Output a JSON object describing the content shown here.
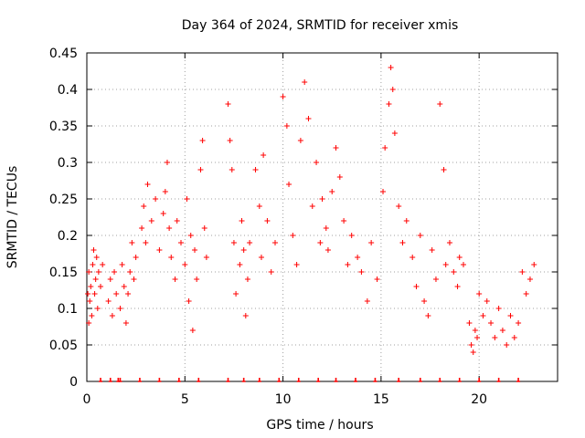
{
  "chart_data": {
    "type": "scatter",
    "title": "Day 364 of 2024, SRMTID for receiver xmis",
    "xlabel": "GPS time / hours",
    "ylabel": "SRMTID / TECUs",
    "xlim": [
      0,
      24
    ],
    "ylim": [
      0,
      0.45
    ],
    "xticks": [
      0,
      5,
      10,
      15,
      20
    ],
    "xtick_labels": [
      "0",
      "5",
      "10",
      "15",
      "20"
    ],
    "yticks": [
      0,
      0.05,
      0.1,
      0.15,
      0.2,
      0.25,
      0.3,
      0.35,
      0.4,
      0.45
    ],
    "ytick_labels": [
      "0",
      "0.05",
      "0.1",
      "0.15",
      "0.2",
      "0.25",
      "0.3",
      "0.35",
      "0.4",
      "0.45"
    ],
    "grid": true,
    "marker": "plus",
    "color": "#ff0000",
    "series": [
      {
        "name": "SRMTID",
        "x": [
          0.05,
          0.1,
          0.1,
          0.15,
          0.2,
          0.25,
          0.3,
          0.35,
          0.4,
          0.45,
          0.5,
          0.55,
          0.6,
          0.7,
          0.8,
          1.1,
          1.2,
          1.3,
          1.4,
          1.5,
          1.7,
          1.8,
          1.9,
          2.0,
          2.1,
          2.2,
          2.3,
          2.4,
          2.5,
          2.8,
          2.9,
          3.0,
          3.1,
          3.3,
          3.5,
          3.7,
          3.9,
          4.0,
          4.1,
          4.2,
          4.3,
          4.5,
          4.6,
          4.8,
          5.0,
          5.1,
          5.2,
          5.3,
          5.4,
          5.5,
          5.6,
          5.8,
          5.9,
          6.0,
          6.1,
          7.2,
          7.3,
          7.4,
          7.5,
          7.6,
          7.8,
          7.9,
          8.0,
          8.1,
          8.2,
          8.3,
          8.6,
          8.8,
          8.9,
          9.0,
          9.2,
          9.4,
          9.6,
          10.0,
          10.2,
          10.3,
          10.5,
          10.7,
          10.9,
          11.1,
          11.3,
          11.5,
          11.7,
          11.9,
          12.0,
          12.2,
          12.3,
          12.5,
          12.7,
          12.9,
          13.1,
          13.3,
          13.5,
          13.8,
          14.0,
          14.3,
          14.5,
          14.8,
          15.1,
          15.2,
          15.4,
          15.5,
          15.6,
          15.7,
          15.9,
          16.1,
          16.3,
          16.6,
          16.8,
          17.0,
          17.2,
          17.4,
          17.6,
          17.8,
          18.0,
          18.2,
          18.3,
          18.5,
          18.7,
          18.9,
          19.0,
          19.2,
          19.5,
          19.6,
          19.7,
          19.8,
          19.9,
          20.0,
          20.2,
          20.4,
          20.6,
          20.8,
          21.0,
          21.2,
          21.4,
          21.6,
          21.8,
          22.0,
          22.2,
          22.4,
          22.6,
          22.8
        ],
        "y": [
          0.12,
          0.08,
          0.15,
          0.11,
          0.13,
          0.09,
          0.16,
          0.18,
          0.12,
          0.14,
          0.17,
          0.1,
          0.15,
          0.13,
          0.16,
          0.11,
          0.14,
          0.09,
          0.15,
          0.12,
          0.1,
          0.16,
          0.13,
          0.08,
          0.12,
          0.15,
          0.19,
          0.14,
          0.17,
          0.21,
          0.24,
          0.19,
          0.27,
          0.22,
          0.25,
          0.18,
          0.23,
          0.26,
          0.3,
          0.21,
          0.17,
          0.14,
          0.22,
          0.19,
          0.16,
          0.25,
          0.11,
          0.2,
          0.07,
          0.18,
          0.14,
          0.29,
          0.33,
          0.21,
          0.17,
          0.38,
          0.33,
          0.29,
          0.19,
          0.12,
          0.16,
          0.22,
          0.18,
          0.09,
          0.14,
          0.19,
          0.29,
          0.24,
          0.17,
          0.31,
          0.22,
          0.15,
          0.19,
          0.39,
          0.35,
          0.27,
          0.2,
          0.16,
          0.33,
          0.41,
          0.36,
          0.24,
          0.3,
          0.19,
          0.25,
          0.21,
          0.18,
          0.26,
          0.32,
          0.28,
          0.22,
          0.16,
          0.2,
          0.17,
          0.15,
          0.11,
          0.19,
          0.14,
          0.26,
          0.32,
          0.38,
          0.43,
          0.4,
          0.34,
          0.24,
          0.19,
          0.22,
          0.17,
          0.13,
          0.2,
          0.11,
          0.09,
          0.18,
          0.14,
          0.38,
          0.29,
          0.16,
          0.19,
          0.15,
          0.13,
          0.17,
          0.16,
          0.08,
          0.05,
          0.04,
          0.07,
          0.06,
          0.12,
          0.09,
          0.11,
          0.08,
          0.06,
          0.1,
          0.07,
          0.05,
          0.09,
          0.06,
          0.08,
          0.15,
          0.12,
          0.14,
          0.16
        ]
      }
    ],
    "gap_markers": {
      "y": 0,
      "x": [
        0.7,
        1.2,
        1.6,
        1.7,
        2.7,
        3.7,
        4.7,
        5.7,
        7.2,
        8.0,
        8.8,
        9.8,
        10.8,
        11.8,
        12.7,
        13.7,
        14.7,
        15.9,
        17.0,
        18.0,
        19.0,
        20.0,
        21.0,
        22.0
      ]
    }
  }
}
